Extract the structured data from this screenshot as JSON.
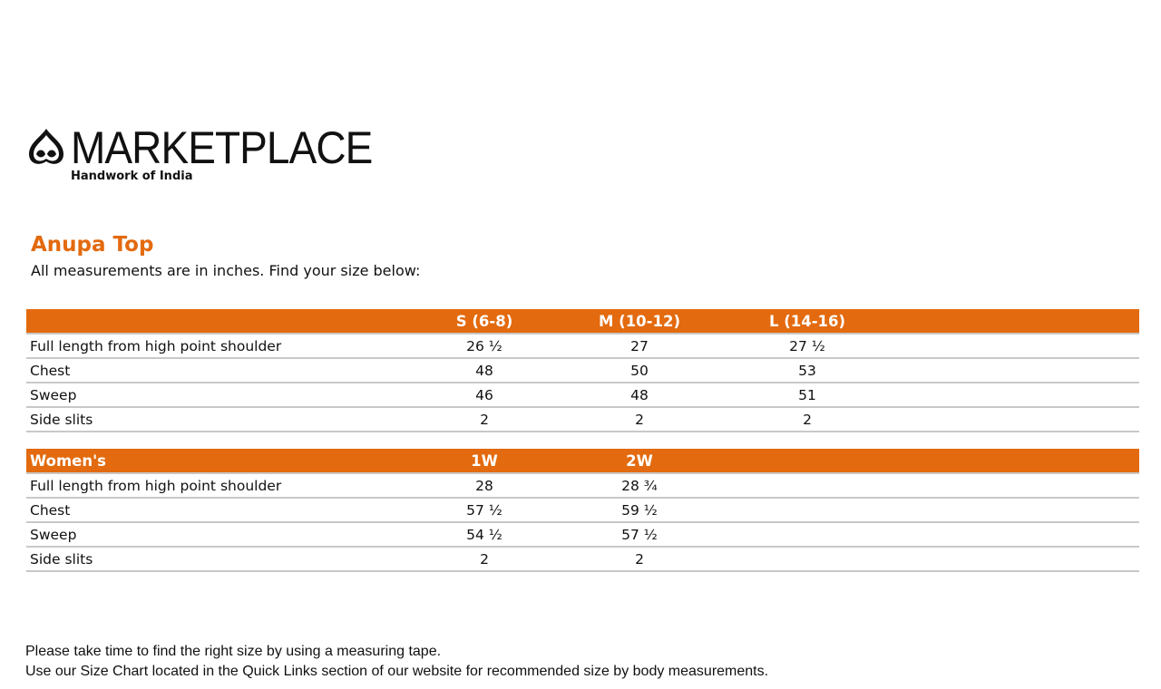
{
  "brand": {
    "name": "MARKETPLACE",
    "tagline": "Handwork of India"
  },
  "title": "Anupa Top",
  "subtitle": "All measurements are in inches. Find your size below:",
  "table1": {
    "headers": [
      "",
      "S (6-8)",
      "M (10-12)",
      "L (14-16)"
    ],
    "rows": [
      [
        "Full length from high point shoulder",
        "26 ½",
        "27",
        "27 ½"
      ],
      [
        "Chest",
        "48",
        "50",
        "53"
      ],
      [
        "Sweep",
        "46",
        "48",
        "51"
      ],
      [
        "Side slits",
        "2",
        "2",
        "2"
      ]
    ]
  },
  "table2": {
    "headers": [
      "Women's",
      "1W",
      "2W"
    ],
    "rows": [
      [
        "Full length from high point shoulder",
        "28",
        "28 ¾"
      ],
      [
        "Chest",
        "57 ½",
        "59 ½"
      ],
      [
        "Sweep",
        "54 ½",
        "57 ½"
      ],
      [
        "Side slits",
        "2",
        "2"
      ]
    ]
  },
  "footer": [
    "Please take time to find the right size by using a measuring tape.",
    "Use our Size Chart located in the Quick Links section of our website for recommended size by body measurements."
  ],
  "colors": {
    "accent": "#E36A0E"
  }
}
